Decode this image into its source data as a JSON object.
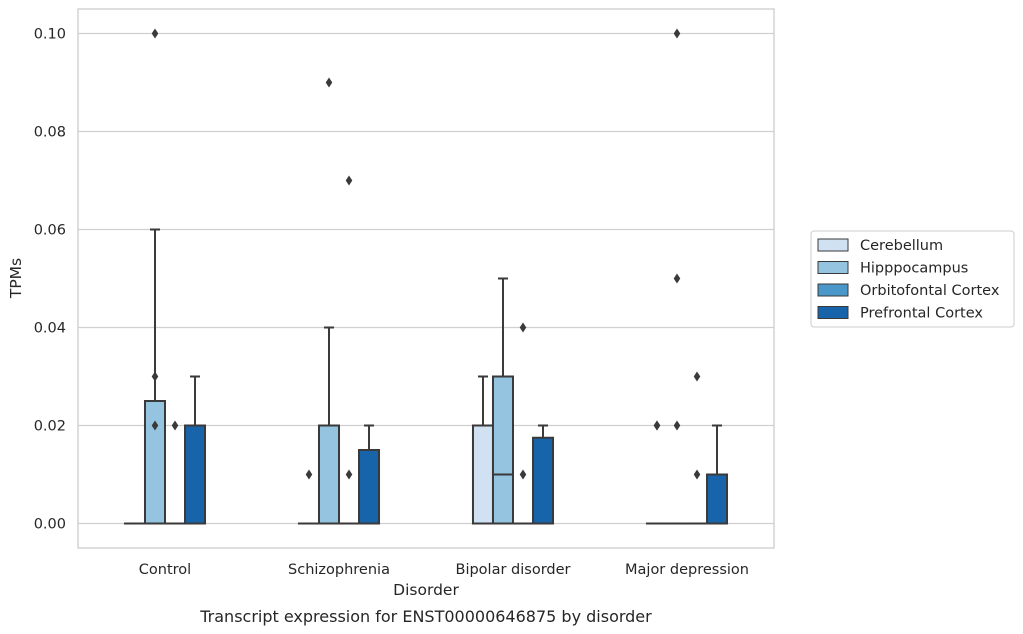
{
  "chart_data": {
    "type": "box",
    "caption": "Transcript expression for ENST00000646875 by disorder",
    "xlabel": "Disorder",
    "ylabel": "TPMs",
    "ylim": [
      -0.005,
      0.105
    ],
    "yticks": [
      0.0,
      0.02,
      0.04,
      0.06,
      0.08,
      0.1
    ],
    "ytick_labels": [
      "0.00",
      "0.02",
      "0.04",
      "0.06",
      "0.08",
      "0.10"
    ],
    "grid": "horizontal",
    "legend_placement": "right",
    "categories": [
      "Control",
      "Schizophrenia",
      "Bipolar disorder",
      "Major depression"
    ],
    "series": [
      {
        "name": "Cerebellum",
        "color": "#d0e1f2",
        "boxes": [
          {
            "q1": 0.0,
            "median": 0.0,
            "q3": 0.0,
            "whisker_low": 0.0,
            "whisker_high": 0.0,
            "outliers": []
          },
          {
            "q1": 0.0,
            "median": 0.0,
            "q3": 0.0,
            "whisker_low": 0.0,
            "whisker_high": 0.0,
            "outliers": [
              0.01
            ]
          },
          {
            "q1": 0.0,
            "median": 0.0,
            "q3": 0.02,
            "whisker_low": 0.0,
            "whisker_high": 0.03,
            "outliers": []
          },
          {
            "q1": 0.0,
            "median": 0.0,
            "q3": 0.0,
            "whisker_low": 0.0,
            "whisker_high": 0.0,
            "outliers": [
              0.02,
              0.02
            ]
          }
        ]
      },
      {
        "name": "Hipppocampus",
        "color": "#94c4df",
        "boxes": [
          {
            "q1": 0.0,
            "median": 0.0,
            "q3": 0.025,
            "whisker_low": 0.0,
            "whisker_high": 0.06,
            "outliers": [
              0.02,
              0.03,
              0.1
            ]
          },
          {
            "q1": 0.0,
            "median": 0.0,
            "q3": 0.02,
            "whisker_low": 0.0,
            "whisker_high": 0.04,
            "outliers": [
              0.09
            ]
          },
          {
            "q1": 0.0,
            "median": 0.01,
            "q3": 0.03,
            "whisker_low": 0.0,
            "whisker_high": 0.05,
            "outliers": []
          },
          {
            "q1": 0.0,
            "median": 0.0,
            "q3": 0.0,
            "whisker_low": 0.0,
            "whisker_high": 0.0,
            "outliers": [
              0.02,
              0.05,
              0.1
            ]
          }
        ]
      },
      {
        "name": "Orbitofontal Cortex",
        "color": "#4a98c9",
        "boxes": [
          {
            "q1": 0.0,
            "median": 0.0,
            "q3": 0.0,
            "whisker_low": 0.0,
            "whisker_high": 0.0,
            "outliers": [
              0.02
            ]
          },
          {
            "q1": 0.0,
            "median": 0.0,
            "q3": 0.0,
            "whisker_low": 0.0,
            "whisker_high": 0.0,
            "outliers": [
              0.01,
              0.07
            ]
          },
          {
            "q1": 0.0,
            "median": 0.0,
            "q3": 0.0,
            "whisker_low": 0.0,
            "whisker_high": 0.0,
            "outliers": [
              0.01,
              0.04
            ]
          },
          {
            "q1": 0.0,
            "median": 0.0,
            "q3": 0.0,
            "whisker_low": 0.0,
            "whisker_high": 0.0,
            "outliers": [
              0.01,
              0.03
            ]
          }
        ]
      },
      {
        "name": "Prefrontal Cortex",
        "color": "#1764ab",
        "boxes": [
          {
            "q1": 0.0,
            "median": 0.0,
            "q3": 0.02,
            "whisker_low": 0.0,
            "whisker_high": 0.03,
            "outliers": []
          },
          {
            "q1": 0.0,
            "median": 0.0,
            "q3": 0.015,
            "whisker_low": 0.0,
            "whisker_high": 0.02,
            "outliers": []
          },
          {
            "q1": 0.0,
            "median": 0.0,
            "q3": 0.0175,
            "whisker_low": 0.0,
            "whisker_high": 0.02,
            "outliers": []
          },
          {
            "q1": 0.0,
            "median": 0.0,
            "q3": 0.01,
            "whisker_low": 0.0,
            "whisker_high": 0.02,
            "outliers": []
          }
        ]
      }
    ]
  }
}
